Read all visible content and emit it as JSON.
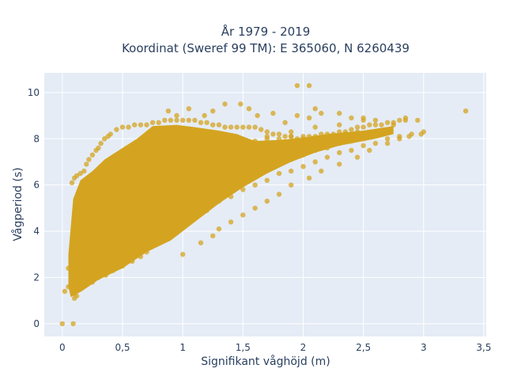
{
  "chart_data": {
    "type": "scatter",
    "title": "År 1979 - 2019",
    "subtitle": "Koordinat (Sweref 99 TM): E 365060, N 6260439",
    "xlabel": "Signifikant våghöjd (m)",
    "ylabel": "Vågperiod (s)",
    "xlim": [
      -0.15,
      3.52
    ],
    "ylim": [
      -0.55,
      10.85
    ],
    "xticks": [
      0,
      0.5,
      1,
      1.5,
      2,
      2.5,
      3,
      3.5
    ],
    "xtick_labels": [
      "0",
      "0,5",
      "1",
      "1,5",
      "2",
      "2,5",
      "3",
      "3,5"
    ],
    "yticks": [
      0,
      2,
      4,
      6,
      8,
      10
    ],
    "ytick_labels": [
      "0",
      "2",
      "4",
      "6",
      "8",
      "10"
    ],
    "grid": true,
    "legend": "none",
    "colors": {
      "marker": "#d4a420",
      "plot_bg": "#e5ecf6",
      "grid": "#ffffff",
      "text": "#2a3f5f"
    },
    "series": [
      {
        "marker": "circle",
        "x": [
          0.0,
          0.09,
          0.1,
          0.12,
          0.1,
          0.02,
          0.05,
          0.08,
          0.12,
          0.16,
          0.2,
          0.25,
          0.3,
          0.36,
          0.42,
          0.5,
          0.58,
          0.65,
          0.7,
          0.08,
          0.1,
          0.12,
          0.15,
          0.18,
          0.2,
          0.22,
          0.25,
          0.28,
          0.3,
          0.32,
          0.35,
          0.38,
          0.4,
          0.45,
          0.5,
          0.55,
          0.6,
          0.65,
          0.7,
          0.75,
          0.8,
          0.85,
          0.9,
          0.95,
          1.0,
          1.05,
          1.1,
          1.15,
          1.2,
          1.25,
          1.3,
          1.35,
          1.4,
          1.45,
          1.5,
          1.55,
          1.6,
          1.65,
          1.7,
          1.75,
          1.8,
          1.85,
          1.9,
          1.95,
          2.0,
          2.05,
          2.1,
          2.15,
          2.2,
          2.25,
          2.3,
          2.35,
          2.4,
          2.45,
          2.5,
          2.55,
          2.6,
          2.65,
          2.7,
          2.75,
          2.8,
          2.85,
          0.18,
          0.2,
          0.22,
          0.25,
          0.3,
          0.4,
          0.5,
          0.55,
          0.6,
          0.65,
          0.7,
          0.75,
          0.8,
          0.85,
          0.9,
          0.95,
          1.0,
          1.05,
          1.1,
          1.15,
          1.2,
          1.3,
          1.4,
          1.5,
          1.6,
          0.05,
          0.1,
          0.15,
          0.3,
          0.45,
          0.6,
          0.75,
          0.9,
          1.0,
          1.1,
          1.2,
          1.3,
          1.4,
          1.5,
          1.6,
          1.7,
          1.8,
          1.9,
          2.0,
          0.15,
          0.25,
          0.35,
          0.45,
          0.55,
          0.65,
          0.75,
          0.85,
          0.95,
          1.05,
          1.15,
          1.25,
          1.35,
          1.45,
          1.55,
          1.65,
          1.75,
          1.85,
          1.95,
          2.05,
          2.15,
          2.25,
          2.35,
          2.45,
          0.88,
          0.95,
          1.05,
          1.18,
          1.25,
          1.35,
          1.48,
          1.55,
          1.62,
          1.75,
          1.85,
          1.95,
          2.05,
          2.1,
          2.15,
          2.3,
          2.4,
          2.5,
          2.6,
          2.75,
          2.85,
          2.95,
          0.62,
          0.7,
          0.78,
          0.86,
          0.94,
          1.0,
          1.08,
          1.12,
          1.2,
          1.3,
          1.4,
          1.5,
          1.6,
          1.7,
          1.8,
          1.9,
          2.0,
          2.1,
          2.2,
          2.3,
          2.4,
          2.5,
          2.6,
          2.7,
          2.8,
          2.9,
          3.0,
          3.35,
          1.95,
          2.05,
          1.0,
          1.15,
          1.25,
          1.3,
          1.4,
          1.5,
          1.6,
          1.7,
          1.8,
          1.9,
          2.05,
          2.15,
          2.3,
          2.45,
          2.55,
          2.7,
          2.8,
          2.88,
          2.98,
          0.3,
          0.5,
          0.7,
          0.9,
          1.1,
          1.3,
          1.5,
          1.7,
          1.9,
          2.1,
          2.3,
          2.5,
          0.2,
          0.3,
          0.4,
          0.5,
          0.6,
          0.7,
          0.8,
          0.9,
          1.0,
          1.1,
          1.2,
          1.3,
          1.4,
          1.5,
          1.6,
          1.7,
          1.8,
          1.9,
          2.0,
          2.1,
          2.2,
          2.3,
          2.4,
          2.5
        ],
        "y": [
          0.0,
          0.0,
          1.1,
          1.2,
          1.3,
          1.4,
          1.6,
          1.5,
          1.5,
          1.6,
          1.7,
          1.8,
          2.0,
          2.1,
          2.3,
          2.5,
          2.7,
          2.9,
          3.1,
          6.1,
          6.3,
          6.4,
          6.5,
          6.6,
          6.9,
          7.1,
          7.3,
          7.5,
          7.6,
          7.8,
          8.0,
          8.1,
          8.2,
          8.4,
          8.5,
          8.5,
          8.6,
          8.6,
          8.6,
          8.7,
          8.7,
          8.8,
          8.8,
          8.8,
          8.8,
          8.8,
          8.8,
          8.7,
          8.7,
          8.6,
          8.6,
          8.5,
          8.5,
          8.5,
          8.5,
          8.5,
          8.5,
          8.4,
          8.3,
          8.2,
          8.2,
          8.1,
          8.1,
          8.0,
          8.0,
          8.1,
          8.1,
          8.2,
          8.2,
          8.2,
          8.3,
          8.3,
          8.4,
          8.5,
          8.5,
          8.6,
          8.6,
          8.6,
          8.7,
          8.7,
          8.8,
          8.8,
          2.0,
          2.5,
          3.0,
          3.5,
          4.0,
          4.5,
          5.0,
          5.3,
          5.5,
          5.7,
          5.9,
          6.0,
          6.2,
          6.3,
          6.4,
          6.5,
          6.6,
          6.7,
          6.8,
          6.9,
          7.0,
          7.1,
          7.2,
          7.3,
          7.4,
          2.4,
          3.5,
          4.5,
          5.6,
          6.2,
          6.7,
          7.0,
          7.2,
          7.4,
          7.5,
          7.6,
          7.7,
          7.8,
          7.9,
          7.9,
          8.0,
          8.0,
          8.1,
          8.1,
          2.9,
          3.6,
          4.2,
          4.8,
          5.2,
          5.6,
          5.9,
          6.2,
          6.4,
          6.6,
          6.8,
          6.9,
          7.1,
          7.2,
          7.4,
          7.5,
          7.6,
          7.7,
          7.8,
          7.9,
          8.0,
          8.1,
          8.2,
          8.3,
          9.2,
          9.0,
          9.3,
          9.0,
          9.2,
          9.5,
          9.5,
          9.3,
          9.0,
          9.1,
          8.7,
          9.0,
          8.9,
          9.3,
          9.1,
          9.1,
          8.9,
          8.9,
          8.8,
          8.6,
          8.9,
          8.8,
          4.5,
          4.8,
          4.2,
          4.4,
          4.6,
          4.5,
          4.8,
          5.1,
          4.9,
          5.3,
          5.5,
          5.8,
          6.0,
          6.2,
          6.5,
          6.6,
          6.8,
          7.0,
          7.2,
          7.4,
          7.5,
          7.7,
          7.8,
          8.0,
          8.1,
          8.2,
          8.3,
          9.2,
          10.3,
          10.3,
          3.0,
          3.5,
          3.8,
          4.1,
          4.4,
          4.7,
          5.0,
          5.3,
          5.6,
          6.0,
          6.3,
          6.6,
          6.9,
          7.2,
          7.5,
          7.8,
          8.0,
          8.1,
          8.2,
          3.8,
          5.0,
          6.0,
          6.7,
          7.2,
          7.6,
          7.9,
          8.1,
          8.3,
          8.5,
          8.6,
          8.8,
          2.2,
          2.6,
          3.0,
          3.3,
          3.7,
          4.0,
          4.3,
          4.6,
          4.9,
          5.1,
          5.4,
          5.7,
          5.9,
          6.2,
          6.4,
          6.7,
          6.9,
          7.1,
          7.3,
          7.5,
          7.6,
          7.8,
          7.9,
          8.0
        ]
      }
    ]
  }
}
